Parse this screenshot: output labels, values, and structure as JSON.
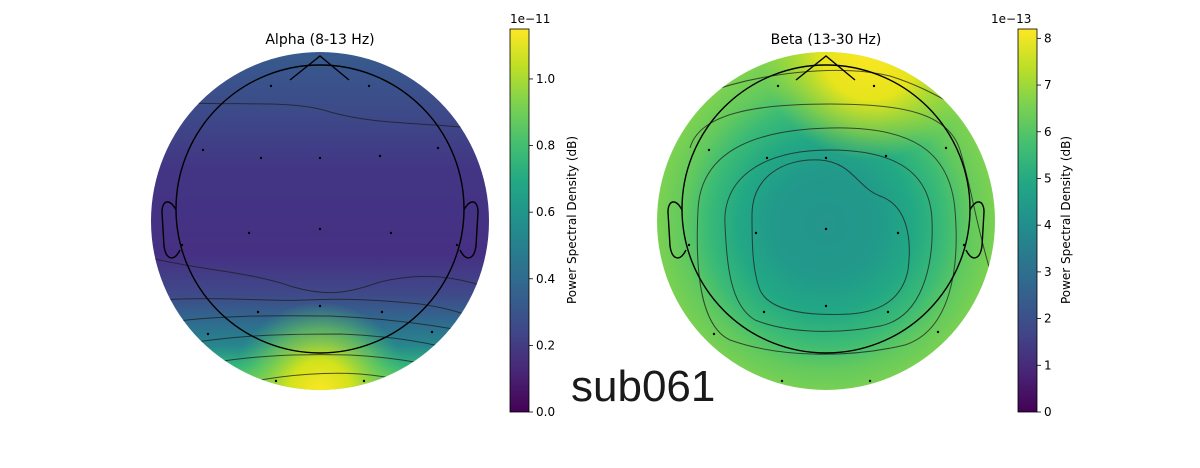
{
  "subject_label": "sub061",
  "chart_data": [
    {
      "type": "heatmap",
      "title": "Alpha (8-13 Hz)",
      "colorbar": {
        "label": "Power Spectral Density (dB)",
        "scale_label": "1e−11",
        "ticks": [
          "0.0",
          "0.2",
          "0.4",
          "0.6",
          "0.8",
          "1.0"
        ],
        "tick_values": [
          0.0,
          0.2,
          0.4,
          0.6,
          0.8,
          1.0
        ],
        "range": [
          0.0,
          1.15
        ],
        "colormap": "viridis"
      },
      "pattern": "low power over central/frontal scalp, rising toward the occipital (bottom) region where it peaks",
      "contour_levels": 7,
      "sensors": 19
    },
    {
      "type": "heatmap",
      "title": "Beta (13-30 Hz)",
      "colorbar": {
        "label": "Power Spectral Density (dB)",
        "scale_label": "1e−13",
        "ticks": [
          "0",
          "1",
          "2",
          "3",
          "4",
          "5",
          "6",
          "7",
          "8"
        ],
        "tick_values": [
          0,
          1,
          2,
          3,
          4,
          5,
          6,
          7,
          8
        ],
        "range": [
          0,
          8.2
        ],
        "colormap": "viridis"
      },
      "pattern": "lowest power over central scalp, increasing toward the periphery with a maximum at the frontal edge",
      "contour_levels": 5,
      "sensors": 19
    }
  ]
}
